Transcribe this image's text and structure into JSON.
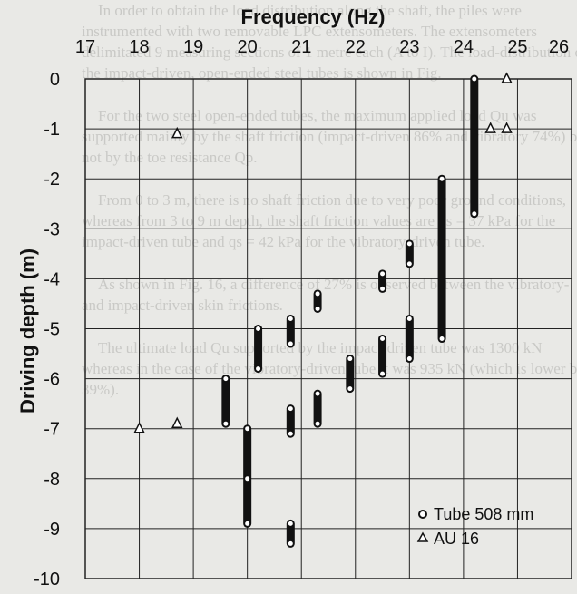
{
  "background_text": [
    "In order to obtain the load distribution along the shaft, the piles were instrumented with two removable LPC extensometers. The extensometers delimitated 9 measuring sections of 1 metre each (A to I). The load-distribution of the impact-driven, open-ended steel tubes is shown in Fig.",
    "For the two steel open-ended tubes, the maximum applied load Qu was supported mainly by the shaft friction (impact-driven 86% and vibratory 74%) but not by the toe resistance Qp.",
    "From 0 to 3 m, there is no shaft friction due to very poor ground conditions, whereas from 3 to 9 m depth, the shaft friction values are qs = 37 kPa for the impact-driven tube and qs = 42 kPa for the vibratory-driven tube.",
    "As shown in Fig. 16, a difference of 27% is observed between the vibratory- and impact-driven skin frictions.",
    "The ultimate load Qu supported by the impact-driven tube was 1300 kN whereas in the case of the vibratory-driven tube it was 935 kN (which is lower by 39%)."
  ],
  "chart_data": {
    "type": "scatter",
    "title": "",
    "xlabel": "Frequency (Hz)",
    "ylabel": "Driving depth (m)",
    "xlim": [
      17,
      26
    ],
    "ylim": [
      -10,
      0
    ],
    "x_ticks": [
      17,
      18,
      19,
      20,
      21,
      22,
      23,
      24,
      25,
      26
    ],
    "x_tick_labels": [
      "17",
      "18",
      "19",
      "20",
      "21",
      "22",
      "23",
      "24",
      "25",
      "26"
    ],
    "y_ticks": [
      0,
      -1,
      -2,
      -3,
      -4,
      -5,
      -6,
      -7,
      -8,
      -9,
      -10
    ],
    "y_tick_labels": [
      "0",
      "-1",
      "-2",
      "-3",
      "-4",
      "-5",
      "-6",
      "-7",
      "-8",
      "-9",
      "-10"
    ],
    "x_axis_position": "top",
    "grid": true,
    "legend_position": "bottom-right",
    "colors": {
      "marker": "#111111",
      "grid": "#222222",
      "fill": "#ffffff"
    },
    "series": [
      {
        "name": "Tube 508 mm",
        "marker": "circle",
        "points": [
          [
            20.0,
            -8.9
          ],
          [
            20.0,
            -7.0
          ],
          [
            20.0,
            -8.0
          ],
          [
            19.6,
            -6.0
          ],
          [
            19.6,
            -6.9
          ],
          [
            20.2,
            -5.0
          ],
          [
            20.2,
            -5.8
          ],
          [
            20.8,
            -4.8
          ],
          [
            20.8,
            -5.3
          ],
          [
            20.8,
            -6.6
          ],
          [
            20.8,
            -7.1
          ],
          [
            20.8,
            -8.9
          ],
          [
            20.8,
            -9.3
          ],
          [
            21.3,
            -4.3
          ],
          [
            21.3,
            -4.6
          ],
          [
            21.3,
            -6.3
          ],
          [
            21.3,
            -6.9
          ],
          [
            21.9,
            -5.6
          ],
          [
            21.9,
            -6.2
          ],
          [
            22.5,
            -3.9
          ],
          [
            22.5,
            -4.2
          ],
          [
            22.5,
            -5.2
          ],
          [
            22.5,
            -5.9
          ],
          [
            23.0,
            -3.3
          ],
          [
            23.0,
            -3.7
          ],
          [
            23.0,
            -4.8
          ],
          [
            23.0,
            -5.6
          ],
          [
            23.6,
            -2.0
          ],
          [
            23.6,
            -5.2
          ],
          [
            24.2,
            0.0
          ],
          [
            24.2,
            -2.7
          ]
        ]
      },
      {
        "name": "AU 16",
        "marker": "triangle",
        "points": [
          [
            18.0,
            -7.0
          ],
          [
            18.7,
            -1.1
          ],
          [
            18.7,
            -6.9
          ],
          [
            24.5,
            -1.0
          ],
          [
            24.8,
            -1.0
          ],
          [
            24.8,
            0.0
          ]
        ]
      }
    ],
    "vertical_bars": [
      [
        20.0,
        -7.0,
        -8.9
      ],
      [
        19.6,
        -6.0,
        -6.9
      ],
      [
        20.2,
        -5.0,
        -5.8
      ],
      [
        20.8,
        -4.8,
        -5.3
      ],
      [
        20.8,
        -6.6,
        -7.1
      ],
      [
        20.8,
        -8.9,
        -9.3
      ],
      [
        21.3,
        -4.3,
        -4.6
      ],
      [
        21.3,
        -6.3,
        -6.9
      ],
      [
        21.9,
        -5.6,
        -6.2
      ],
      [
        22.5,
        -3.9,
        -4.2
      ],
      [
        22.5,
        -5.2,
        -5.9
      ],
      [
        23.0,
        -3.3,
        -3.7
      ],
      [
        23.0,
        -4.8,
        -5.6
      ],
      [
        23.6,
        -2.0,
        -5.2
      ],
      [
        24.2,
        0.0,
        -2.7
      ]
    ]
  }
}
